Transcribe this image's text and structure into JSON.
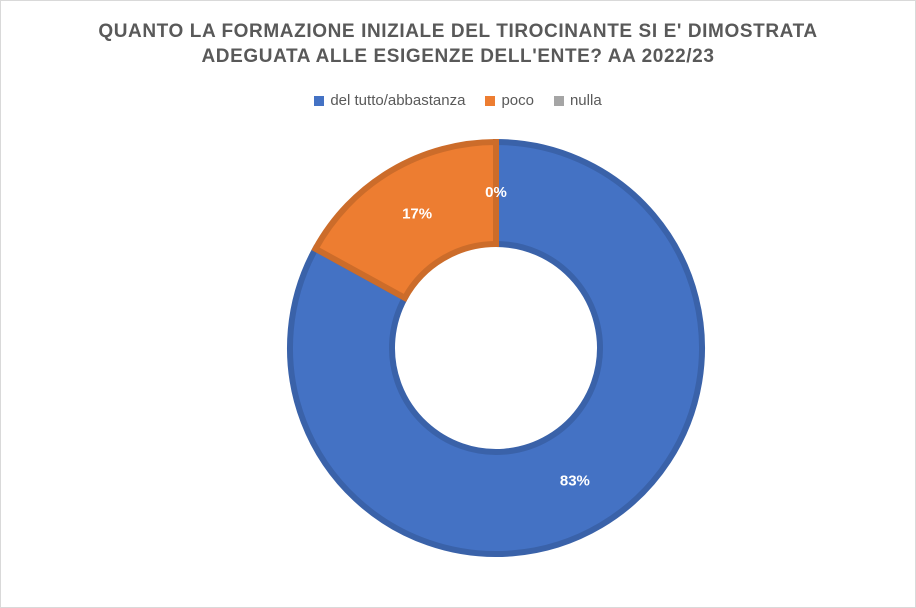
{
  "chart_data": {
    "type": "pie",
    "subtype": "doughnut",
    "title_lines": [
      "QUANTO LA FORMAZIONE INIZIALE DEL TIROCINANTE SI E' DIMOSTRATA",
      "ADEGUATA ALLE ESIGENZE DELL'ENTE? AA 2022/23"
    ],
    "legend_position": "top",
    "slices": [
      {
        "label": "del tutto/abbastanza",
        "value": 83,
        "data_label": "83%",
        "color": "#4472c4"
      },
      {
        "label": "poco",
        "value": 17,
        "data_label": "17%",
        "color": "#ed7d31"
      },
      {
        "label": "nulla",
        "value": 0,
        "data_label": "0%",
        "color": "#a5a5a5"
      }
    ]
  }
}
